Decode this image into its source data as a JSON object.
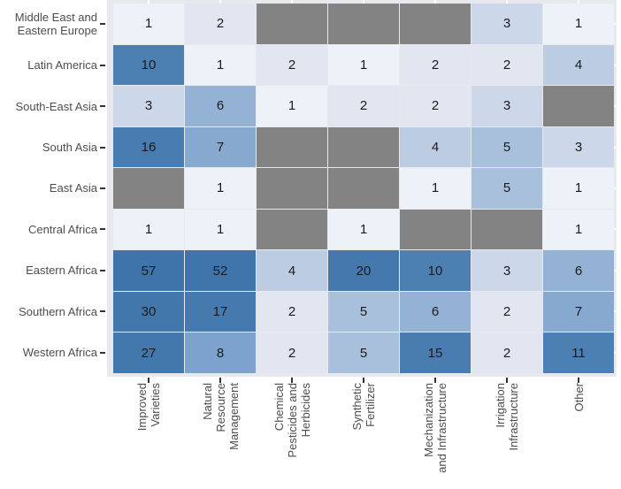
{
  "chart_data": {
    "type": "heatmap",
    "title": "",
    "xlabel": "",
    "ylabel": "",
    "row_labels": [
      "Middle East and\nEastern Europe",
      "Latin America",
      "South-East Asia",
      "South Asia",
      "East Asia",
      "Central Africa",
      "Eastern Africa",
      "Southern Africa",
      "Western Africa"
    ],
    "col_labels": [
      "Improved\nVarieties",
      "Natural\nResource\nManagement",
      "Chemical\nPesticides and\nHerbicides",
      "Synthetic\nFertilizer",
      "Mechanization\nand Infrastructure",
      "Irrigation\nInfrastructure",
      "Other"
    ],
    "values": [
      [
        1,
        2,
        null,
        null,
        null,
        3,
        1
      ],
      [
        10,
        1,
        2,
        1,
        2,
        2,
        4
      ],
      [
        3,
        6,
        1,
        2,
        2,
        3,
        null
      ],
      [
        16,
        7,
        null,
        null,
        4,
        5,
        3
      ],
      [
        null,
        1,
        null,
        null,
        1,
        5,
        1
      ],
      [
        1,
        1,
        null,
        1,
        null,
        null,
        1
      ],
      [
        57,
        52,
        4,
        20,
        10,
        3,
        6
      ],
      [
        30,
        17,
        2,
        5,
        6,
        2,
        7
      ],
      [
        27,
        8,
        2,
        5,
        15,
        2,
        11
      ]
    ],
    "legend": "none",
    "grid": "off",
    "value_range": [
      1,
      57
    ]
  },
  "colors": {
    "na_cell": "#838383",
    "panel_bg": "#e7e9ec",
    "gap_lines": "#ffffff",
    "axis_text": "#4d4d4d",
    "cell_text": "#1a1a1a",
    "tick_dark": "#333333",
    "tick_light": "#ffffff",
    "value_colors": {
      "1": "#edf1f8",
      "2": "#e1e6f1",
      "3": "#ccd7e9",
      "4": "#bccde3",
      "5": "#a9c0dc",
      "6": "#93b2d4",
      "7": "#87a9d0",
      "8": "#7da3cc",
      "10": "#4c80b2",
      "11": "#4c80b2",
      "15": "#497db0",
      "16": "#487cb0",
      "17": "#467aaf",
      "20": "#4579ae",
      "27": "#4378ad",
      "30": "#4277ac",
      "52": "#3f75ab",
      "57": "#3e74aa"
    }
  }
}
